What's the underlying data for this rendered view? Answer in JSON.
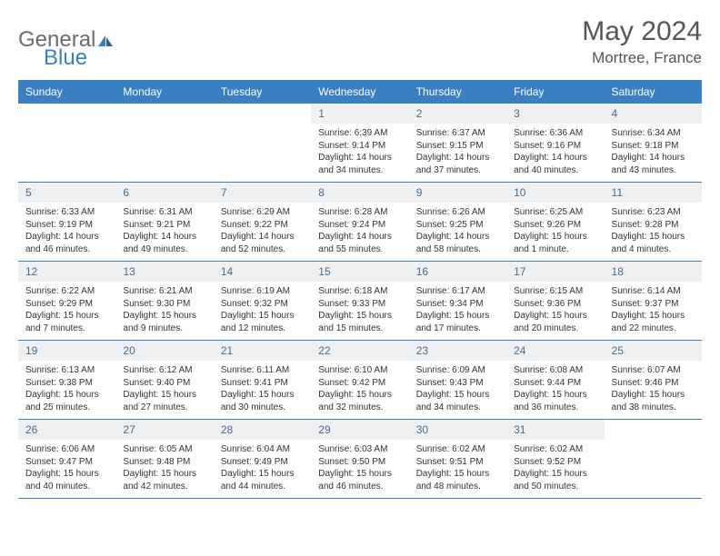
{
  "logo": {
    "general": "General",
    "blue": "Blue"
  },
  "title": "May 2024",
  "location": "Mortree, France",
  "colors": {
    "header_bg": "#3a7fc4",
    "header_text": "#ffffff",
    "daynum_bg": "#eef0f2",
    "daynum_text": "#4b6b8a",
    "body_text": "#333333",
    "divider": "#3a7fc4",
    "logo_gray": "#6b6b6b",
    "logo_blue": "#3a7fc4"
  },
  "weekdays": [
    "Sunday",
    "Monday",
    "Tuesday",
    "Wednesday",
    "Thursday",
    "Friday",
    "Saturday"
  ],
  "weeks": [
    [
      {
        "n": "",
        "lines": []
      },
      {
        "n": "",
        "lines": []
      },
      {
        "n": "",
        "lines": []
      },
      {
        "n": "1",
        "lines": [
          "Sunrise: 6:39 AM",
          "Sunset: 9:14 PM",
          "Daylight: 14 hours and 34 minutes."
        ]
      },
      {
        "n": "2",
        "lines": [
          "Sunrise: 6:37 AM",
          "Sunset: 9:15 PM",
          "Daylight: 14 hours and 37 minutes."
        ]
      },
      {
        "n": "3",
        "lines": [
          "Sunrise: 6:36 AM",
          "Sunset: 9:16 PM",
          "Daylight: 14 hours and 40 minutes."
        ]
      },
      {
        "n": "4",
        "lines": [
          "Sunrise: 6:34 AM",
          "Sunset: 9:18 PM",
          "Daylight: 14 hours and 43 minutes."
        ]
      }
    ],
    [
      {
        "n": "5",
        "lines": [
          "Sunrise: 6:33 AM",
          "Sunset: 9:19 PM",
          "Daylight: 14 hours and 46 minutes."
        ]
      },
      {
        "n": "6",
        "lines": [
          "Sunrise: 6:31 AM",
          "Sunset: 9:21 PM",
          "Daylight: 14 hours and 49 minutes."
        ]
      },
      {
        "n": "7",
        "lines": [
          "Sunrise: 6:29 AM",
          "Sunset: 9:22 PM",
          "Daylight: 14 hours and 52 minutes."
        ]
      },
      {
        "n": "8",
        "lines": [
          "Sunrise: 6:28 AM",
          "Sunset: 9:24 PM",
          "Daylight: 14 hours and 55 minutes."
        ]
      },
      {
        "n": "9",
        "lines": [
          "Sunrise: 6:26 AM",
          "Sunset: 9:25 PM",
          "Daylight: 14 hours and 58 minutes."
        ]
      },
      {
        "n": "10",
        "lines": [
          "Sunrise: 6:25 AM",
          "Sunset: 9:26 PM",
          "Daylight: 15 hours and 1 minute."
        ]
      },
      {
        "n": "11",
        "lines": [
          "Sunrise: 6:23 AM",
          "Sunset: 9:28 PM",
          "Daylight: 15 hours and 4 minutes."
        ]
      }
    ],
    [
      {
        "n": "12",
        "lines": [
          "Sunrise: 6:22 AM",
          "Sunset: 9:29 PM",
          "Daylight: 15 hours and 7 minutes."
        ]
      },
      {
        "n": "13",
        "lines": [
          "Sunrise: 6:21 AM",
          "Sunset: 9:30 PM",
          "Daylight: 15 hours and 9 minutes."
        ]
      },
      {
        "n": "14",
        "lines": [
          "Sunrise: 6:19 AM",
          "Sunset: 9:32 PM",
          "Daylight: 15 hours and 12 minutes."
        ]
      },
      {
        "n": "15",
        "lines": [
          "Sunrise: 6:18 AM",
          "Sunset: 9:33 PM",
          "Daylight: 15 hours and 15 minutes."
        ]
      },
      {
        "n": "16",
        "lines": [
          "Sunrise: 6:17 AM",
          "Sunset: 9:34 PM",
          "Daylight: 15 hours and 17 minutes."
        ]
      },
      {
        "n": "17",
        "lines": [
          "Sunrise: 6:15 AM",
          "Sunset: 9:36 PM",
          "Daylight: 15 hours and 20 minutes."
        ]
      },
      {
        "n": "18",
        "lines": [
          "Sunrise: 6:14 AM",
          "Sunset: 9:37 PM",
          "Daylight: 15 hours and 22 minutes."
        ]
      }
    ],
    [
      {
        "n": "19",
        "lines": [
          "Sunrise: 6:13 AM",
          "Sunset: 9:38 PM",
          "Daylight: 15 hours and 25 minutes."
        ]
      },
      {
        "n": "20",
        "lines": [
          "Sunrise: 6:12 AM",
          "Sunset: 9:40 PM",
          "Daylight: 15 hours and 27 minutes."
        ]
      },
      {
        "n": "21",
        "lines": [
          "Sunrise: 6:11 AM",
          "Sunset: 9:41 PM",
          "Daylight: 15 hours and 30 minutes."
        ]
      },
      {
        "n": "22",
        "lines": [
          "Sunrise: 6:10 AM",
          "Sunset: 9:42 PM",
          "Daylight: 15 hours and 32 minutes."
        ]
      },
      {
        "n": "23",
        "lines": [
          "Sunrise: 6:09 AM",
          "Sunset: 9:43 PM",
          "Daylight: 15 hours and 34 minutes."
        ]
      },
      {
        "n": "24",
        "lines": [
          "Sunrise: 6:08 AM",
          "Sunset: 9:44 PM",
          "Daylight: 15 hours and 36 minutes."
        ]
      },
      {
        "n": "25",
        "lines": [
          "Sunrise: 6:07 AM",
          "Sunset: 9:46 PM",
          "Daylight: 15 hours and 38 minutes."
        ]
      }
    ],
    [
      {
        "n": "26",
        "lines": [
          "Sunrise: 6:06 AM",
          "Sunset: 9:47 PM",
          "Daylight: 15 hours and 40 minutes."
        ]
      },
      {
        "n": "27",
        "lines": [
          "Sunrise: 6:05 AM",
          "Sunset: 9:48 PM",
          "Daylight: 15 hours and 42 minutes."
        ]
      },
      {
        "n": "28",
        "lines": [
          "Sunrise: 6:04 AM",
          "Sunset: 9:49 PM",
          "Daylight: 15 hours and 44 minutes."
        ]
      },
      {
        "n": "29",
        "lines": [
          "Sunrise: 6:03 AM",
          "Sunset: 9:50 PM",
          "Daylight: 15 hours and 46 minutes."
        ]
      },
      {
        "n": "30",
        "lines": [
          "Sunrise: 6:02 AM",
          "Sunset: 9:51 PM",
          "Daylight: 15 hours and 48 minutes."
        ]
      },
      {
        "n": "31",
        "lines": [
          "Sunrise: 6:02 AM",
          "Sunset: 9:52 PM",
          "Daylight: 15 hours and 50 minutes."
        ]
      },
      {
        "n": "",
        "lines": []
      }
    ]
  ]
}
